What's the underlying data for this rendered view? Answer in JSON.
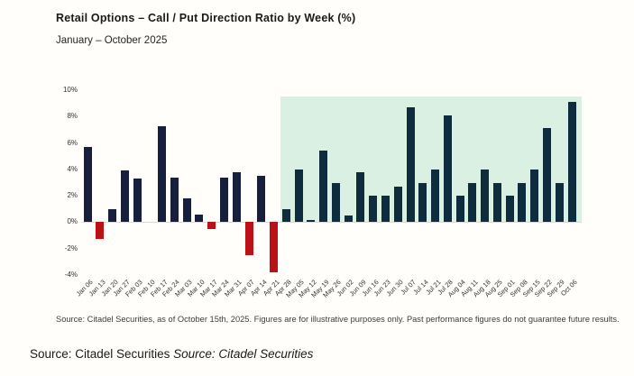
{
  "header": {
    "title": "Retail Options – Call / Put Direction Ratio by Week (%)",
    "subtitle": "January – October 2025"
  },
  "chart_data": {
    "type": "bar",
    "title": "Retail Options – Call / Put Direction Ratio by Week (%)",
    "subtitle": "January – October 2025",
    "xlabel": "",
    "ylabel": "",
    "ylim": [
      -4,
      10
    ],
    "grid": false,
    "legend": "none",
    "categories": [
      "Jan 06",
      "Jan 13",
      "Jan 20",
      "Jan 27",
      "Feb 03",
      "Feb 10",
      "Feb 17",
      "Feb 24",
      "Mar 03",
      "Mar 10",
      "Mar 17",
      "Mar 24",
      "Mar 31",
      "Apr 07",
      "Apr 14",
      "Apr 21",
      "Apr 28",
      "May 05",
      "May 12",
      "May 19",
      "May 26",
      "Jun 02",
      "Jun 09",
      "Jun 16",
      "Jun 23",
      "Jun 30",
      "Jul 07",
      "Jul 14",
      "Jul 21",
      "Jul 28",
      "Aug 04",
      "Aug 11",
      "Aug 18",
      "Aug 25",
      "Sep 01",
      "Sep 08",
      "Sep 15",
      "Sep 22",
      "Sep 29",
      "Oct 06"
    ],
    "values": [
      5.7,
      -1.3,
      1.0,
      3.9,
      3.3,
      0,
      7.3,
      3.4,
      1.8,
      0.6,
      -0.5,
      3.4,
      3.8,
      -2.5,
      3.5,
      -3.8,
      1.0,
      4.0,
      0.15,
      5.4,
      3.0,
      0.5,
      3.8,
      2.0,
      2.0,
      2.7,
      8.7,
      3.0,
      4.0,
      8.1,
      2.0,
      3.0,
      4.0,
      3.0,
      2.0,
      3.0,
      4.0,
      7.1,
      3.0,
      9.1
    ],
    "yticks": [
      {
        "label": "10%",
        "value": 10
      },
      {
        "label": "8%",
        "value": 8
      },
      {
        "label": "6%",
        "value": 6
      },
      {
        "label": "4%",
        "value": 4
      },
      {
        "label": "2%",
        "value": 2
      },
      {
        "label": "0%",
        "value": 0
      },
      {
        "label": "-2%",
        "value": -2
      },
      {
        "label": "-4%",
        "value": -4
      }
    ],
    "highlight_region": {
      "start_category": "Apr 28",
      "end_category": "Oct 06",
      "from_value": 0,
      "to_value": 9.5,
      "color": "#d9f0e3"
    },
    "colors": {
      "bar_positive": "#161f3e",
      "bar_positive_highlight": "#0f2c3e",
      "bar_negative": "#bb1117",
      "highlight_bg": "#d9f0e3",
      "axis_line": "#d9d9d9"
    }
  },
  "footnote": {
    "text": "Source: Citadel Securities, as of October 15th, 2025. Figures are for illustrative purposes only. Past performance figures do not guarantee future results."
  },
  "caption": {
    "regular": "Source: Citadel Securities",
    "italic": "Source: Citadel Securities"
  }
}
